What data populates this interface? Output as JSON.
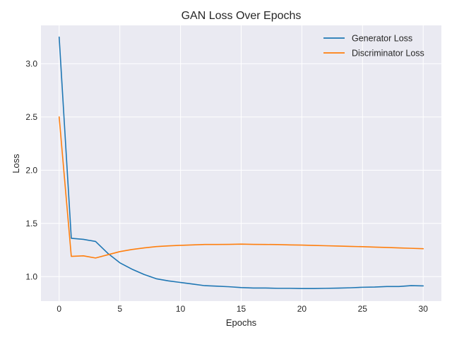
{
  "chart_data": {
    "type": "line",
    "title": "GAN Loss Over Epochs",
    "xlabel": "Epochs",
    "ylabel": "Loss",
    "xlim": [
      -1.5,
      31.5
    ],
    "ylim": [
      0.77,
      3.36
    ],
    "xticks": [
      0,
      5,
      10,
      15,
      20,
      25,
      30
    ],
    "yticks": [
      1.0,
      1.5,
      2.0,
      2.5,
      3.0
    ],
    "grid": true,
    "legend_position": "top-right",
    "x": [
      0,
      1,
      2,
      3,
      4,
      5,
      6,
      7,
      8,
      9,
      10,
      11,
      12,
      13,
      14,
      15,
      16,
      17,
      18,
      19,
      20,
      21,
      22,
      23,
      24,
      25,
      26,
      27,
      28,
      29,
      30
    ],
    "series": [
      {
        "name": "Generator Loss",
        "color": "#1f77b4",
        "values": [
          3.25,
          1.36,
          1.35,
          1.33,
          1.22,
          1.13,
          1.07,
          1.02,
          0.98,
          0.96,
          0.945,
          0.93,
          0.915,
          0.91,
          0.905,
          0.897,
          0.893,
          0.893,
          0.89,
          0.89,
          0.888,
          0.888,
          0.89,
          0.892,
          0.895,
          0.9,
          0.902,
          0.907,
          0.907,
          0.915,
          0.913
        ]
      },
      {
        "name": "Discriminator Loss",
        "color": "#ff7f0e",
        "values": [
          2.5,
          1.19,
          1.195,
          1.175,
          1.205,
          1.235,
          1.255,
          1.27,
          1.282,
          1.289,
          1.294,
          1.298,
          1.302,
          1.302,
          1.303,
          1.305,
          1.303,
          1.302,
          1.301,
          1.298,
          1.296,
          1.293,
          1.29,
          1.287,
          1.284,
          1.281,
          1.277,
          1.274,
          1.27,
          1.266,
          1.262
        ]
      }
    ]
  }
}
